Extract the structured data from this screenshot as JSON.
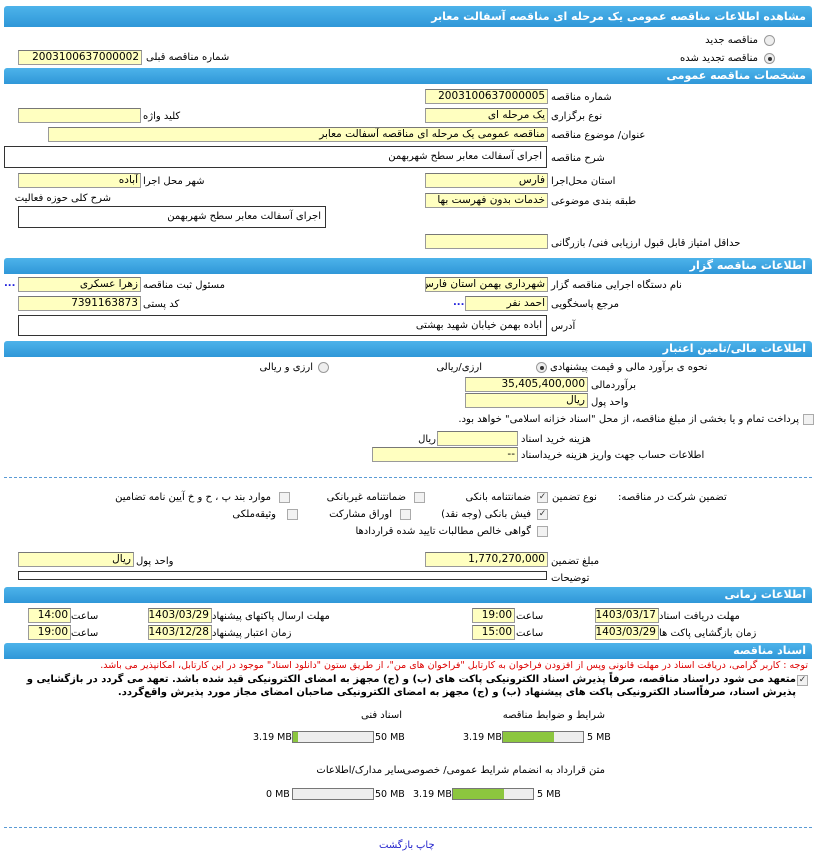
{
  "title": "مشاهده اطلاعات مناقصه عمومی یک مرحله ای مناقصه آسفالت معابر",
  "tender_type": {
    "new_label": "مناقصه جدید",
    "renewed_label": "مناقصه تجدید شده",
    "selected": "renewed",
    "prev_number_label": "شماره مناقصه قبلی",
    "prev_number": "2003100637000002"
  },
  "general": {
    "header": "مشخصات مناقصه عمومی",
    "number_label": "شماره مناقصه",
    "number": "2003100637000005",
    "holding_type_label": "نوع برگزاری",
    "holding_type": "یک مرحله ای",
    "keyword_label": "کلید واژه",
    "keyword": "",
    "subject_label": "عنوان/ موضوع مناقصه",
    "subject": "مناقصه عمومی یک مرحله ای مناقصه آسفالت معابر",
    "description_label": "شرح مناقصه",
    "description": "اجرای آسفالت معابر سطح شهربهمن",
    "province_label": "استان محل‌اجرا",
    "province": "فارس",
    "city_label": "شهر محل اجرا",
    "city": "آباده",
    "category_label": "طبقه بندی موضوعی",
    "category": "خدمات بدون فهرست بها",
    "activity_label": "شرح کلی حوزه فعالیت",
    "activity": "اجرای آسفالت معابر سطح شهربهمن",
    "min_score_label": "حداقل امتیاز قابل قبول ارزیابی فنی/ بازرگانی",
    "min_score": ""
  },
  "organizer": {
    "header": "اطلاعات مناقصه گزار",
    "org_label": "نام دستگاه اجرایی مناقصه گزار",
    "org": "شهرداری بهمن استان فارس",
    "registrar_label": "مسئول ثبت مناقصه",
    "registrar": "زهرا عسکری",
    "contact_label": "مرجع پاسخگویی",
    "contact": "احمد نفر",
    "postal_label": "کد پستی",
    "postal": "7391163873",
    "address_label": "آدرس",
    "address": "اباده بهمن خیابان شهید بهشتی",
    "more": "..."
  },
  "finance": {
    "header": "اطلاعات مالی/تامین اعتبار",
    "method_label": "نحوه ی برآورد مالی و قیمت پیشنهادی",
    "opt_rial": "ارزی/ریالی",
    "opt_both": "ارزی و ریالی",
    "selected": "rial",
    "estimate_label": "برآوردمالی",
    "estimate": "35,405,400,000",
    "currency_label": "واحد پول",
    "currency": "ریال",
    "treasury_text": "پرداخت تمام و یا بخشی از مبلغ مناقصه، از محل \"اسناد خزانه اسلامی\" خواهد بود.",
    "treasury_checked": false,
    "doc_fee_label": "هزینه خرید اسناد",
    "doc_fee": "",
    "doc_fee_unit": "ریال",
    "account_label": "اطلاعات حساب جهت واریز هزینه خریداسناد",
    "account": "--"
  },
  "guarantee": {
    "label": "تضمین شرکت در مناقصه:",
    "type_label": "نوع تضمین",
    "options": [
      {
        "label": "ضمانتنامه بانکی",
        "checked": true
      },
      {
        "label": "ضمانتنامه غیربانکی",
        "checked": false
      },
      {
        "label": "موارد بند پ ، ح و خ آیین نامه تضامین",
        "checked": false
      },
      {
        "label": "فیش بانکی (وجه نقد)",
        "checked": true
      },
      {
        "label": "اوراق مشارکت",
        "checked": false
      },
      {
        "label": "وثیقه‌ملکی",
        "checked": false
      },
      {
        "label": "گواهی خالص مطالبات تایید شده قراردادها",
        "checked": false
      }
    ],
    "amount_label": "مبلغ تضمین",
    "amount": "1,770,270,000",
    "currency_label": "واحد پول",
    "currency": "ریال",
    "notes_label": "توضیحات",
    "notes": ""
  },
  "timing": {
    "header": "اطلاعات زمانی",
    "receive_label": "مهلت دریافت اسناد",
    "receive_date": "1403/03/17",
    "receive_time": "19:00",
    "submit_label": "مهلت ارسال پاکتهای پیشنهاد",
    "submit_date": "1403/03/29",
    "submit_time": "14:00",
    "open_label": "زمان بازگشایی پاکت ها",
    "open_date": "1403/03/29",
    "open_time": "15:00",
    "validity_label": "زمان اعتبار پیشنهاد",
    "validity_date": "1403/12/28",
    "validity_time": "19:00",
    "time_label": "ساعت"
  },
  "documents": {
    "header": "اسناد مناقصه",
    "note": "توجه : کاربر گرامی، دریافت اسناد در مهلت قانونی وپس از افزودن فراخوان به کارتابل \"فراخوان های من\"، از طریق ستون \"دانلود اسناد\" موجود در این کارتابل، امکانپذیر می باشد.",
    "commitment": "متعهد می شود دراسناد مناقصه، صرفاً پذیرش اسناد الکترونیکی پاکت های (ب) و (ج) مجهز به امضای الکترونیکی قید شده باشد. تعهد می گردد در بازگشایی و پذیرش اسناد، صرفاًاسناد الکترونیکی پاکت های پیشنهاد (ب) و (ج) مجهز به امضای الکترونیکی صاحبان امضای مجاز مورد پذیرش واقع‌گردد.",
    "files": [
      {
        "label": "شرایط و ضوابط مناقصه",
        "used": "3.19 MB",
        "max": "5 MB",
        "fraction": 0.64
      },
      {
        "label": "اسناد فنی",
        "used": "3.19 MB",
        "max": "50 MB",
        "fraction": 0.064
      },
      {
        "label": "متن قرارداد به انضمام شرایط عمومی/ خصوصی",
        "used": "3.19 MB",
        "max": "5 MB",
        "fraction": 0.64
      },
      {
        "label": "سایر مدارک/اطلاعات",
        "used": "0 MB",
        "max": "50 MB",
        "fraction": 0
      }
    ]
  },
  "footer": {
    "print": "چاپ",
    "back": "بازگشت"
  }
}
